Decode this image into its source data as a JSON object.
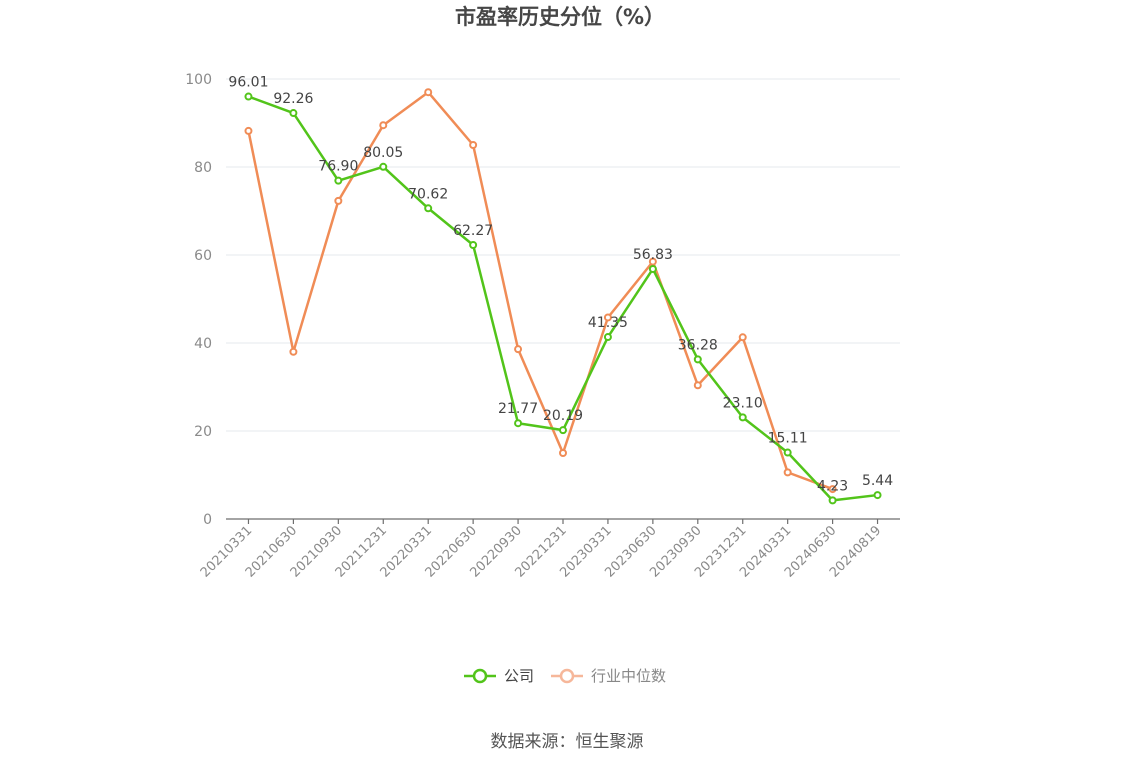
{
  "chart_data": {
    "type": "line",
    "title": "市盈率历史分位（%）",
    "categories": [
      "20210331",
      "20210630",
      "20210930",
      "20211231",
      "20220331",
      "20220630",
      "20220930",
      "20221231",
      "20230331",
      "20230630",
      "20230930",
      "20231231",
      "20240331",
      "20240630",
      "20240819"
    ],
    "series": [
      {
        "name": "公司",
        "color": "#52c41a",
        "values": [
          96.01,
          92.26,
          76.9,
          80.05,
          70.62,
          62.27,
          21.77,
          20.19,
          41.35,
          56.83,
          36.28,
          23.1,
          15.11,
          4.23,
          5.44
        ],
        "labels": [
          "96.01",
          "92.26",
          "76.90",
          "80.05",
          "70.62",
          "62.27",
          "21.77",
          "20.19",
          "41.35",
          "56.83",
          "36.28",
          "23.10",
          "15.11",
          "4.23",
          "5.44"
        ]
      },
      {
        "name": "行业中位数",
        "color": "#f08c56",
        "values": [
          88.2,
          38.0,
          72.3,
          89.5,
          97.0,
          85.0,
          38.6,
          15.0,
          45.8,
          58.5,
          30.4,
          41.3,
          10.6,
          6.8,
          null
        ]
      }
    ],
    "yticks": [
      "0",
      "20",
      "40",
      "60",
      "80",
      "100"
    ],
    "ylim": [
      0,
      100
    ],
    "grid": true,
    "legend_position": "bottom-center",
    "source": "数据来源：恒生聚源"
  }
}
